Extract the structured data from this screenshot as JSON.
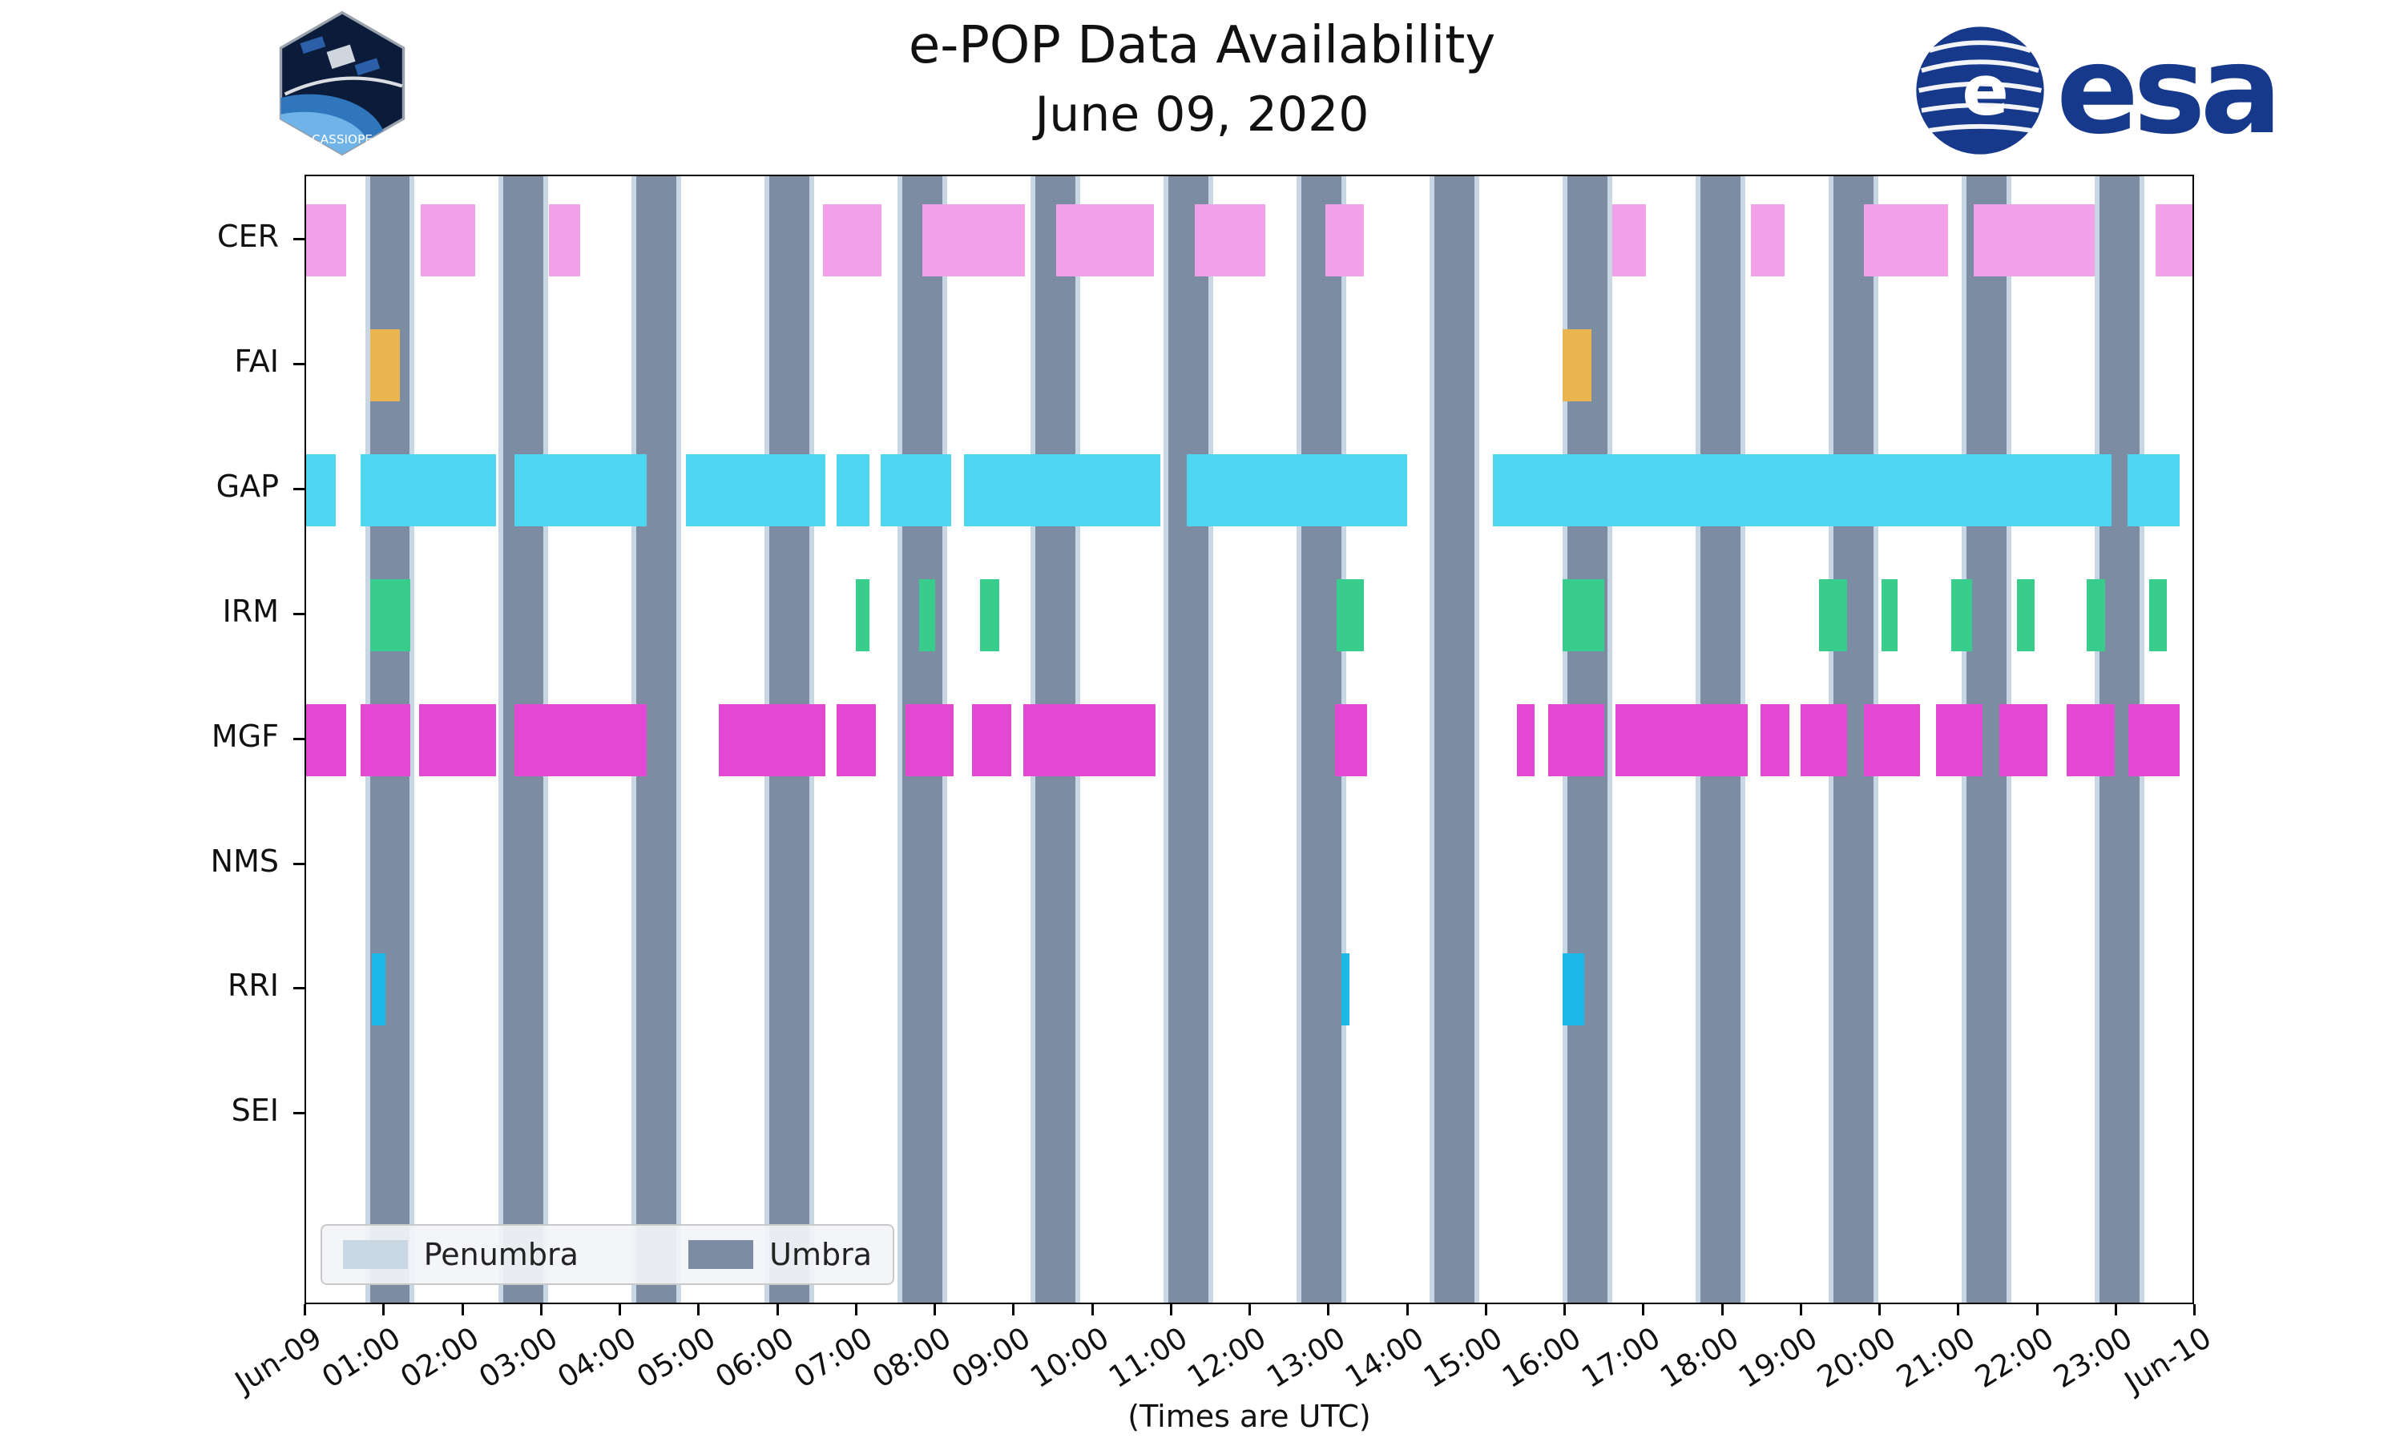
{
  "branding": {
    "cassiope_text": "CASSIOPE",
    "esa_text": "esa",
    "esa_globe_letter": "e",
    "esa_blue": "#17398C",
    "patch_navy": "#0B1B3A"
  },
  "chart_data": {
    "type": "availability-timeline",
    "title": "e-POP Data Availability",
    "subtitle": "June 09, 2020",
    "xlabel": "(Times are UTC)",
    "x_range_hours": [
      0,
      24
    ],
    "x_ticks": [
      "Jun-09",
      "01:00",
      "02:00",
      "03:00",
      "04:00",
      "05:00",
      "06:00",
      "07:00",
      "08:00",
      "09:00",
      "10:00",
      "11:00",
      "12:00",
      "13:00",
      "14:00",
      "15:00",
      "16:00",
      "17:00",
      "18:00",
      "19:00",
      "20:00",
      "21:00",
      "22:00",
      "23:00",
      "Jun-10"
    ],
    "rows": [
      {
        "label": "CER",
        "color": "#F2A0E8",
        "intervals": [
          [
            0.0,
            0.51
          ],
          [
            1.46,
            2.15
          ],
          [
            3.08,
            3.48
          ],
          [
            6.56,
            7.31
          ],
          [
            7.83,
            9.13
          ],
          [
            9.53,
            10.77
          ],
          [
            11.29,
            12.18
          ],
          [
            12.95,
            13.44
          ],
          [
            16.59,
            17.02
          ],
          [
            18.35,
            18.78
          ],
          [
            19.79,
            20.86
          ],
          [
            21.18,
            22.72
          ],
          [
            23.49,
            24.0
          ]
        ]
      },
      {
        "label": "FAI",
        "color": "#EAB54E",
        "intervals": [
          [
            0.81,
            1.19
          ],
          [
            15.96,
            16.33
          ]
        ]
      },
      {
        "label": "GAP",
        "color": "#4ED6F1",
        "intervals": [
          [
            0.0,
            0.38
          ],
          [
            0.69,
            2.41
          ],
          [
            2.65,
            4.33
          ],
          [
            4.82,
            6.6
          ],
          [
            6.74,
            7.16
          ],
          [
            7.3,
            8.19
          ],
          [
            8.36,
            10.85
          ],
          [
            11.19,
            13.98
          ],
          [
            15.07,
            22.93
          ],
          [
            23.13,
            23.8
          ]
        ]
      },
      {
        "label": "IRM",
        "color": "#38CD8C",
        "intervals": [
          [
            0.81,
            1.32
          ],
          [
            6.98,
            7.16
          ],
          [
            7.79,
            7.99
          ],
          [
            8.56,
            8.8
          ],
          [
            13.09,
            13.44
          ],
          [
            15.96,
            16.49
          ],
          [
            19.22,
            19.57
          ],
          [
            20.01,
            20.21
          ],
          [
            20.9,
            21.16
          ],
          [
            21.73,
            21.95
          ],
          [
            22.62,
            22.85
          ],
          [
            23.41,
            23.63
          ]
        ]
      },
      {
        "label": "MGF",
        "color": "#E348D3",
        "intervals": [
          [
            0.0,
            0.51
          ],
          [
            0.69,
            1.32
          ],
          [
            1.44,
            2.41
          ],
          [
            2.65,
            4.33
          ],
          [
            5.24,
            6.6
          ],
          [
            6.74,
            7.24
          ],
          [
            7.61,
            8.22
          ],
          [
            8.46,
            8.96
          ],
          [
            9.11,
            10.79
          ],
          [
            13.07,
            13.48
          ],
          [
            15.38,
            15.6
          ],
          [
            15.78,
            16.49
          ],
          [
            16.63,
            18.31
          ],
          [
            18.47,
            18.84
          ],
          [
            18.98,
            19.57
          ],
          [
            19.79,
            20.5
          ],
          [
            20.7,
            21.29
          ],
          [
            21.51,
            22.12
          ],
          [
            22.36,
            22.97
          ],
          [
            23.15,
            23.8
          ]
        ]
      },
      {
        "label": "NMS",
        "color": null,
        "intervals": []
      },
      {
        "label": "RRI",
        "color": "#1CB8E8",
        "intervals": [
          [
            0.83,
            1.01
          ],
          [
            13.15,
            13.25
          ],
          [
            15.96,
            16.23
          ]
        ]
      },
      {
        "label": "SEI",
        "color": null,
        "intervals": []
      }
    ],
    "shadow": {
      "umbra_color": "#7B8CA3",
      "penumbra_color": "#C9D7E4",
      "penumbra_pad_hours": 0.06,
      "umbra_intervals_hours": [
        [
          0.81,
          1.31
        ],
        [
          2.5,
          3.01
        ],
        [
          4.19,
          4.7
        ],
        [
          5.88,
          6.39
        ],
        [
          7.57,
          8.08
        ],
        [
          9.26,
          9.77
        ],
        [
          10.95,
          11.46
        ],
        [
          12.64,
          13.15
        ],
        [
          14.33,
          14.84
        ],
        [
          16.02,
          16.53
        ],
        [
          17.71,
          18.22
        ],
        [
          19.4,
          19.91
        ],
        [
          21.09,
          21.6
        ],
        [
          22.78,
          23.29
        ]
      ]
    },
    "legend": [
      {
        "label": "Penumbra",
        "color": "#C9D7E4"
      },
      {
        "label": "Umbra",
        "color": "#7B8CA3"
      }
    ]
  }
}
